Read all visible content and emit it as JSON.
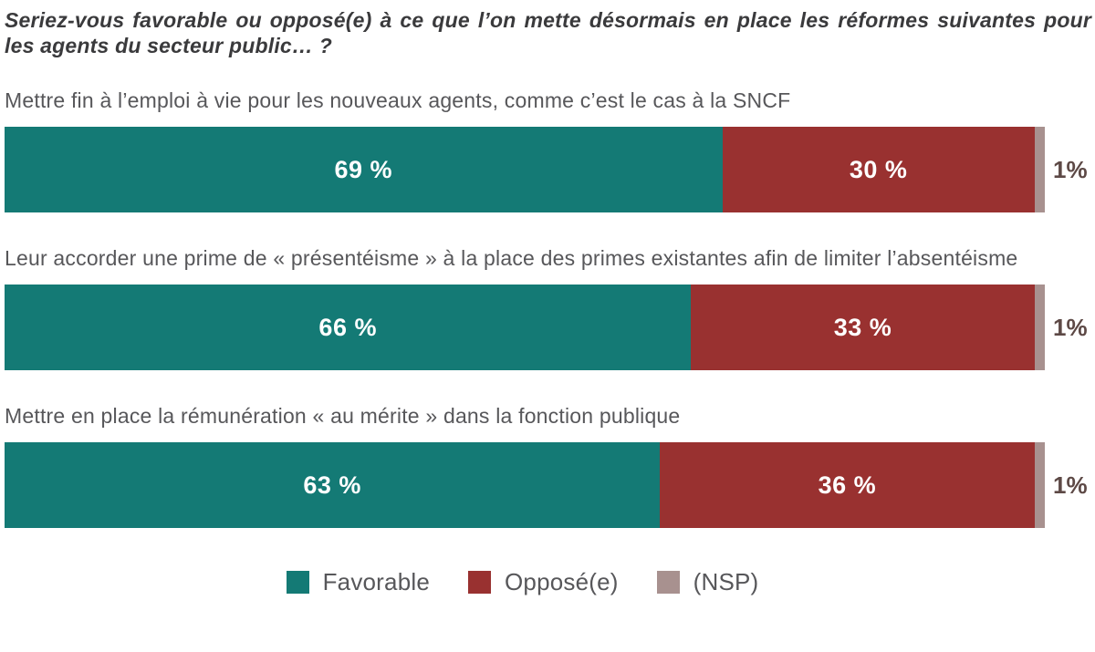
{
  "title": "Seriez-vous favorable ou opposé(e) à ce que l’on mette désormais en place les réformes suivantes pour les agents du secteur public… ?",
  "colors": {
    "favorable": "#147a75",
    "oppose": "#993130",
    "nsp": "#a8918f",
    "nsp_outside_label": "#5d4946",
    "title_text": "#3a3a3c",
    "category_text": "#57575a",
    "bar_value_text": "#ffffff"
  },
  "chart_data": {
    "type": "bar",
    "orientation": "horizontal-stacked",
    "title": "Seriez-vous favorable ou opposé(e) à ce que l’on mette désormais en place les réformes suivantes pour les agents du secteur public… ?",
    "categories": [
      "Mettre fin à l’emploi à vie pour les nouveaux agents, comme c’est le cas à la SNCF",
      "Leur accorder une prime de « présentéisme » à la place des primes existantes afin de limiter l’absentéisme",
      "Mettre en place la rémunération « au mérite » dans la fonction publique"
    ],
    "series": [
      {
        "name": "Favorable",
        "values": [
          69,
          66,
          63
        ]
      },
      {
        "name": "Opposé(e)",
        "values": [
          30,
          33,
          36
        ]
      },
      {
        "name": "(NSP)",
        "values": [
          1,
          1,
          1
        ]
      }
    ],
    "value_labels": [
      {
        "favorable": "69 %",
        "oppose": "30 %",
        "nsp": "1%"
      },
      {
        "favorable": "66 %",
        "oppose": "33 %",
        "nsp": "1%"
      },
      {
        "favorable": "63 %",
        "oppose": "36 %",
        "nsp": "1%"
      }
    ],
    "xlim": [
      0,
      100
    ],
    "grid": false,
    "legend_position": "bottom",
    "legend": [
      {
        "label": "Favorable",
        "color": "#147a75"
      },
      {
        "label": "Opposé(e)",
        "color": "#993130"
      },
      {
        "label": "(NSP)",
        "color": "#a8918f"
      }
    ]
  }
}
